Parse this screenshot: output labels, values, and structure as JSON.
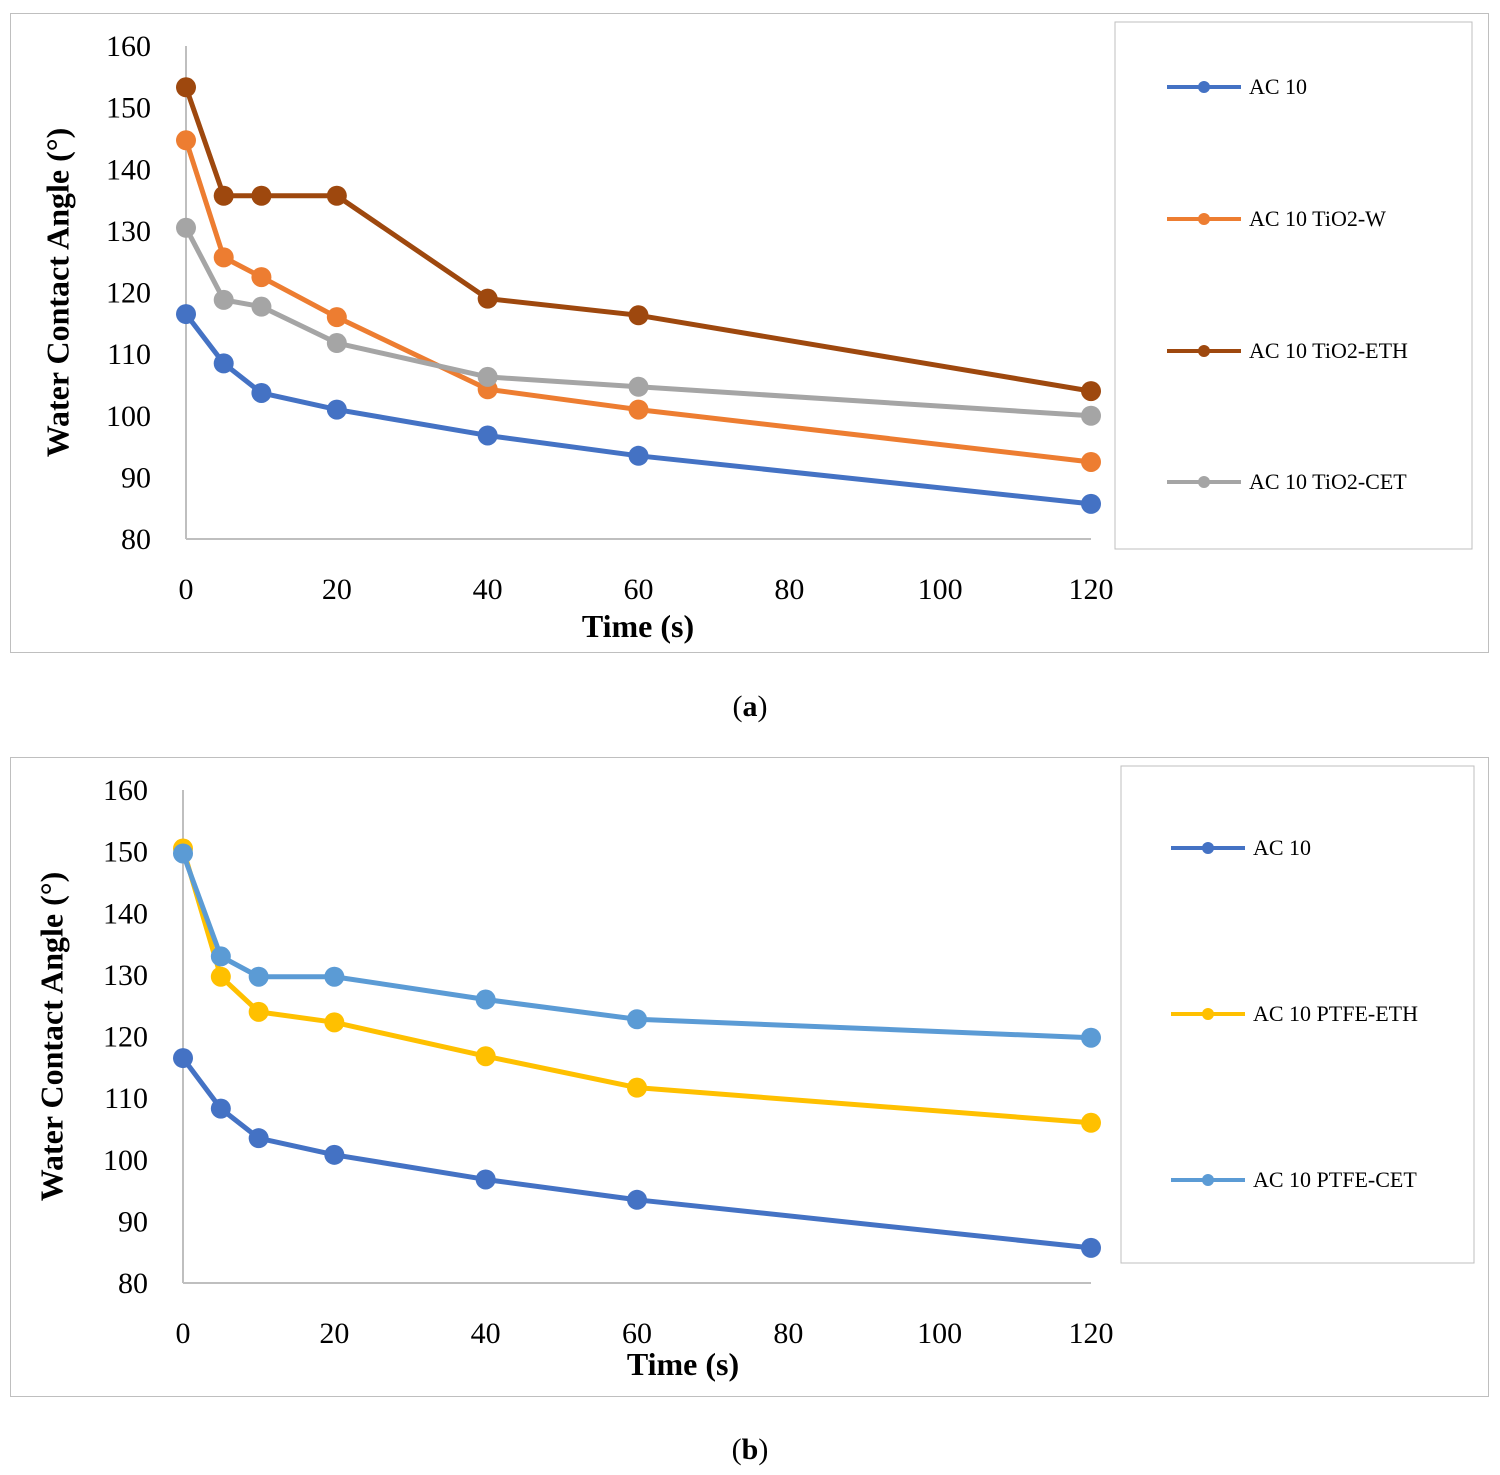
{
  "chart_data": [
    {
      "type": "line",
      "panel": "a",
      "caption_label": "a",
      "xlabel": "Time (s)",
      "ylabel": "Water Contact Angle (°)",
      "xlim": [
        0,
        120
      ],
      "ylim": [
        80,
        160
      ],
      "xticks": [
        0,
        20,
        40,
        60,
        80,
        100,
        120
      ],
      "yticks": [
        80,
        90,
        100,
        110,
        120,
        130,
        140,
        150,
        160
      ],
      "x": [
        0,
        5,
        10,
        20,
        40,
        60,
        120
      ],
      "series": [
        {
          "name": "AC 10",
          "color": "#4472C4",
          "values": [
            116.5,
            108.5,
            103.7,
            101,
            96.8,
            93.5,
            85.7
          ]
        },
        {
          "name": "AC 10 TiO2-W",
          "color": "#ED7D31",
          "values": [
            144.7,
            125.7,
            122.5,
            116,
            104.3,
            101,
            92.5
          ]
        },
        {
          "name": "AC 10 TiO2-ETH",
          "color": "#9E480E",
          "values": [
            153.3,
            135.7,
            135.7,
            135.7,
            119,
            116.3,
            104
          ]
        },
        {
          "name": "AC 10 TiO2-CET",
          "color": "#A5A5A5",
          "values": [
            130.5,
            118.8,
            117.7,
            111.8,
            106.3,
            104.7,
            100
          ]
        }
      ]
    },
    {
      "type": "line",
      "panel": "b",
      "caption_label": "b",
      "xlabel": "Time (s)",
      "ylabel": "Water Contact Angle (°)",
      "xlim": [
        0,
        120
      ],
      "ylim": [
        80,
        160
      ],
      "xticks": [
        0,
        20,
        40,
        60,
        80,
        100,
        120
      ],
      "yticks": [
        80,
        90,
        100,
        110,
        120,
        130,
        140,
        150,
        160
      ],
      "x": [
        0,
        5,
        10,
        20,
        40,
        60,
        120
      ],
      "series": [
        {
          "name": "AC 10",
          "color": "#4472C4",
          "values": [
            116.5,
            108.3,
            103.5,
            100.8,
            96.8,
            93.5,
            85.7
          ]
        },
        {
          "name": "AC 10 PTFE-ETH",
          "color": "#FFC000",
          "values": [
            150.5,
            129.7,
            124,
            122.3,
            116.8,
            111.7,
            106
          ]
        },
        {
          "name": "AC 10 PTFE-CET",
          "color": "#5B9BD5",
          "values": [
            149.7,
            133,
            129.7,
            129.7,
            126,
            122.8,
            119.8
          ]
        }
      ]
    }
  ]
}
